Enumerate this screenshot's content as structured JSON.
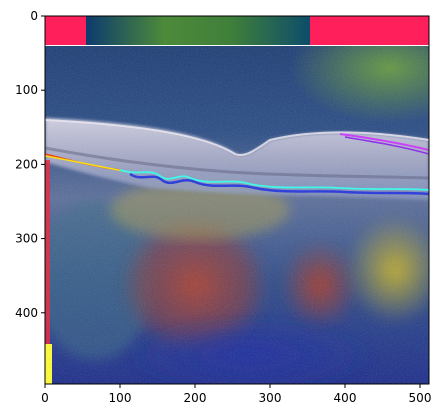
{
  "figure": {
    "type": "image-with-axes",
    "description_colors": {
      "overlay_top_left": "#ff1f5a",
      "overlay_top_right": "#ff1f5a",
      "band_dark": "#0d3b6e",
      "band_green": "#4d8a3a",
      "retina_light": "#c8c4d6",
      "bottom_blue": "#1a2a8a",
      "heat_red": "#a2402d",
      "heat_yellow": "#b6a62a",
      "left_stripe_red": "#e8203a",
      "left_stripe_yellow": "#ffff33"
    },
    "image_extent": {
      "x": [
        0,
        512
      ],
      "y": [
        496,
        0
      ]
    },
    "x_ticks": [
      0,
      100,
      200,
      300,
      400,
      500
    ],
    "y_ticks": [
      0,
      100,
      200,
      300,
      400
    ]
  }
}
